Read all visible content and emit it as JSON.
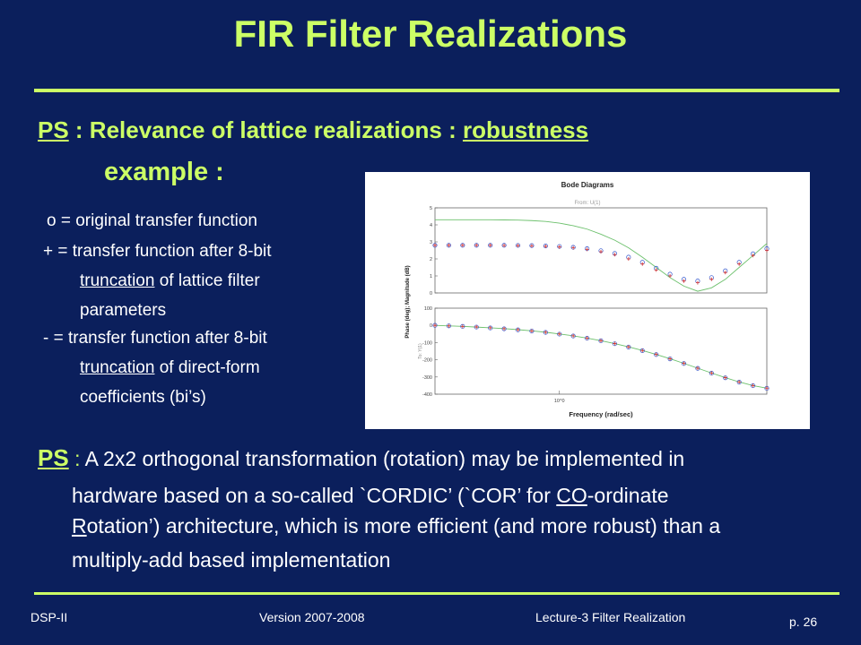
{
  "slide": {
    "title": "FIR Filter Realizations",
    "ps1": {
      "label": "PS",
      "text": " : Relevance of lattice realizations : ",
      "emphasis": "robustness"
    },
    "example": "example :",
    "legend": {
      "o": "o = original transfer function",
      "plus_1": "+ = transfer function after 8-bit",
      "plus_2u": "truncation",
      "plus_2": " of lattice filter",
      "plus_3": "parameters",
      "minus_1": "- = transfer function after 8-bit",
      "minus_2u": "truncation",
      "minus_2": " of direct-form",
      "minus_3": "coefficients (bi’s)"
    },
    "ps2": {
      "label": "PS",
      "colon": " : ",
      "l1": "A 2x2 orthogonal transformation (rotation) may be implemented in",
      "l2a": "hardware based on a so-called `CORDIC’ (`COR’ for ",
      "l2u": "CO",
      "l2b": "-ordinate",
      "l3u": "R",
      "l3b": "otation’) architecture, which is more efficient (and more robust) than a",
      "l4": "multiply-add based implementation"
    },
    "footer": {
      "course": "DSP-II",
      "version": "Version 2007-2008",
      "lecture": "Lecture-3  Filter Realization",
      "page": "p. 26"
    }
  },
  "colors": {
    "background": "#0b1f5c",
    "accent": "#ccff66",
    "text": "#ffffff"
  },
  "chart_data": {
    "type": "line",
    "title": "Bode Diagrams",
    "subtitle": "From: U(1)",
    "xlabel": "Frequency (rad/sec)",
    "ylabel": "Phase (deg); Magnitude (dB)",
    "y2label": "To: Y(1)",
    "x_tick": "10^0",
    "x": [
      0.1,
      0.2,
      0.3,
      0.4,
      0.5,
      0.6,
      0.7,
      0.8,
      0.9,
      1.0,
      1.1,
      1.2,
      1.3,
      1.4,
      1.5,
      1.6,
      1.7,
      1.8,
      1.9,
      2.0,
      2.1,
      2.2,
      2.3,
      2.4,
      2.5
    ],
    "magnitude": {
      "ylim": [
        0,
        5
      ],
      "yticks": [
        "5",
        "4",
        "3",
        "2",
        "1",
        "0"
      ],
      "series": [
        {
          "values": [
            4.3,
            4.3,
            4.3,
            4.3,
            4.3,
            4.29,
            4.28,
            4.25,
            4.2,
            4.1,
            3.95,
            3.75,
            3.45,
            3.1,
            2.65,
            2.1,
            1.5,
            0.9,
            0.4,
            0.1,
            0.3,
            0.8,
            1.5,
            2.2,
            2.9
          ]
        },
        {
          "values": [
            2.8,
            2.8,
            2.8,
            2.8,
            2.8,
            2.8,
            2.79,
            2.78,
            2.76,
            2.73,
            2.68,
            2.6,
            2.48,
            2.32,
            2.1,
            1.8,
            1.45,
            1.1,
            0.8,
            0.7,
            0.9,
            1.3,
            1.8,
            2.3,
            2.6
          ]
        },
        {
          "values": [
            2.8,
            2.8,
            2.8,
            2.8,
            2.8,
            2.79,
            2.78,
            2.77,
            2.74,
            2.7,
            2.65,
            2.56,
            2.42,
            2.25,
            2.0,
            1.7,
            1.35,
            1.0,
            0.7,
            0.6,
            0.8,
            1.2,
            1.7,
            2.2,
            2.5
          ]
        }
      ]
    },
    "phase": {
      "ylim": [
        -400,
        100
      ],
      "yticks": [
        "100",
        "0",
        "-100",
        "-200",
        "-300",
        "-400"
      ],
      "series": [
        {
          "values": [
            0,
            -3,
            -6,
            -10,
            -14,
            -19,
            -25,
            -32,
            -40,
            -50,
            -61,
            -74,
            -89,
            -106,
            -125,
            -146,
            -169,
            -194,
            -221,
            -249,
            -277,
            -304,
            -329,
            -350,
            -365
          ]
        },
        {
          "values": [
            0,
            -3,
            -6,
            -10,
            -15,
            -20,
            -26,
            -33,
            -41,
            -51,
            -62,
            -75,
            -90,
            -107,
            -126,
            -147,
            -170,
            -195,
            -222,
            -250,
            -278,
            -305,
            -330,
            -351,
            -366
          ]
        },
        {
          "values": [
            0,
            -3,
            -6,
            -9,
            -14,
            -19,
            -25,
            -32,
            -40,
            -50,
            -61,
            -74,
            -89,
            -106,
            -125,
            -146,
            -169,
            -194,
            -221,
            -249,
            -277,
            -304,
            -329,
            -350,
            -365
          ]
        }
      ]
    },
    "grid": false
  }
}
